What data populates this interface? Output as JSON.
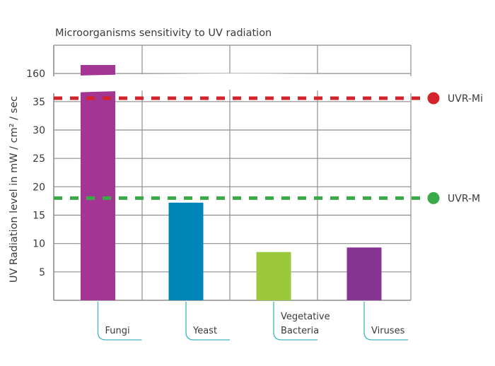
{
  "chart_data": {
    "type": "bar",
    "title": "Microorganisms sensitivity to UV radiation",
    "ylabel": "UV Radiation level in  mW / cm² / sec",
    "xlabel": "",
    "categories": [
      {
        "lines": [
          "Fungi"
        ]
      },
      {
        "lines": [
          "Yeast"
        ]
      },
      {
        "lines": [
          "Vegetative",
          "Bacteria"
        ]
      },
      {
        "lines": [
          "Viruses"
        ]
      }
    ],
    "values": [
      165,
      17.2,
      8.5,
      9.3
    ],
    "bar_colors": [
      "#a33593",
      "#0085b8",
      "#9cc93b",
      "#863592"
    ],
    "y_ticks": [
      "5",
      "10",
      "15",
      "20",
      "25",
      "30",
      "35",
      "160"
    ],
    "y_tick_values": [
      5,
      10,
      15,
      20,
      25,
      30,
      35,
      160
    ],
    "axis_break": {
      "from": 35,
      "to": 160
    },
    "ylim": [
      0,
      38
    ],
    "upper_ylim": [
      160,
      167
    ],
    "grid": true,
    "reference_lines": [
      {
        "label": "UVR-Mi",
        "value": 35.6,
        "color": "#d3242b"
      },
      {
        "label": "UVR-M",
        "value": 18,
        "color": "#3aaa48"
      }
    ],
    "callout_color": "#3db3c0"
  }
}
